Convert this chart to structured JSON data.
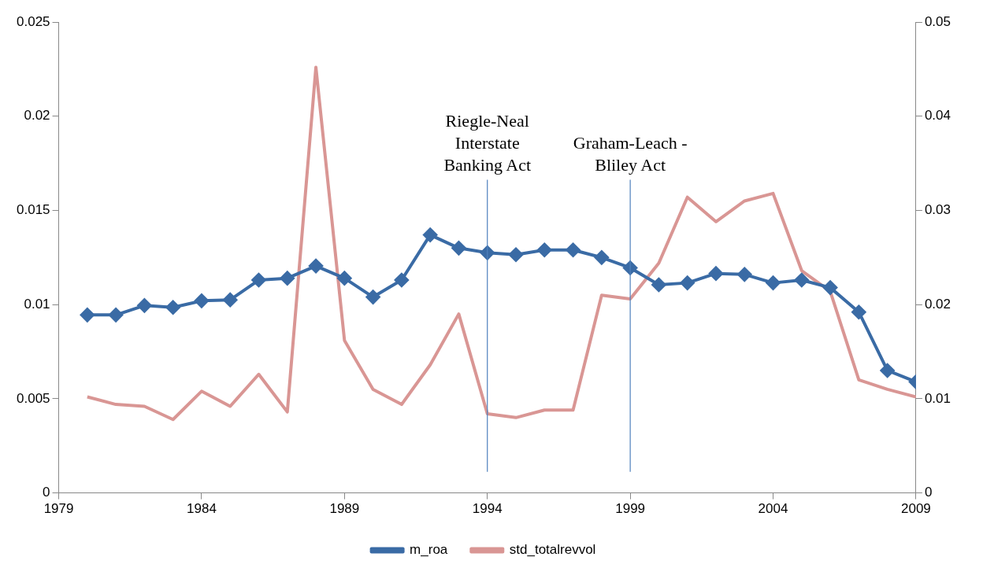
{
  "chart_data": {
    "type": "line",
    "x": [
      1980,
      1981,
      1982,
      1983,
      1984,
      1985,
      1986,
      1987,
      1988,
      1989,
      1990,
      1991,
      1992,
      1993,
      1994,
      1995,
      1996,
      1997,
      1998,
      1999,
      2000,
      2001,
      2002,
      2003,
      2004,
      2005,
      2006,
      2007,
      2008,
      2009
    ],
    "series": [
      {
        "name": "std_totalrevvol",
        "color": "#d99694",
        "marker": "none",
        "values": [
          0.0051,
          0.0047,
          0.0046,
          0.0039,
          0.0054,
          0.0046,
          0.0063,
          0.0043,
          0.0226,
          0.0081,
          0.0055,
          0.0047,
          0.0068,
          0.0095,
          0.0042,
          0.004,
          0.0044,
          0.0044,
          0.0105,
          0.0103,
          0.0122,
          0.0157,
          0.0144,
          0.0155,
          0.0159,
          0.0118,
          0.0107,
          0.006,
          0.0055,
          0.0051
        ]
      },
      {
        "name": "m_roa",
        "color": "#3a6ba5",
        "marker": "diamond",
        "axis": "y2",
        "values": [
          0.0189,
          0.0189,
          0.0199,
          0.0197,
          0.0204,
          0.0205,
          0.0226,
          0.0228,
          0.0241,
          0.0228,
          0.0208,
          0.0226,
          0.0274,
          0.026,
          0.0255,
          0.0253,
          0.0258,
          0.0258,
          0.025,
          0.0239,
          0.0221,
          0.0223,
          0.0233,
          0.0232,
          0.0223,
          0.0226,
          0.0218,
          0.0192,
          0.013,
          0.0118
        ]
      }
    ],
    "xlim": [
      1979,
      2009
    ],
    "xticks": [
      1979,
      1984,
      1989,
      1994,
      1999,
      2004,
      2009
    ],
    "ylim": [
      0,
      0.025
    ],
    "yticks": [
      0,
      0.005,
      0.01,
      0.015,
      0.02,
      0.025
    ],
    "y2lim": [
      0,
      0.05
    ],
    "y2ticks": [
      0,
      0.01,
      0.02,
      0.03,
      0.04,
      0.05
    ],
    "ref_lines": [
      {
        "axis": "x",
        "value": 1994,
        "label": "Riegle-Neal Interstate Banking Act",
        "color": "#4f81bd"
      },
      {
        "axis": "x",
        "value": 1999,
        "label": "Graham-Leach - Bliley Act",
        "color": "#4f81bd"
      }
    ],
    "grid": false,
    "legend": "bottom"
  }
}
